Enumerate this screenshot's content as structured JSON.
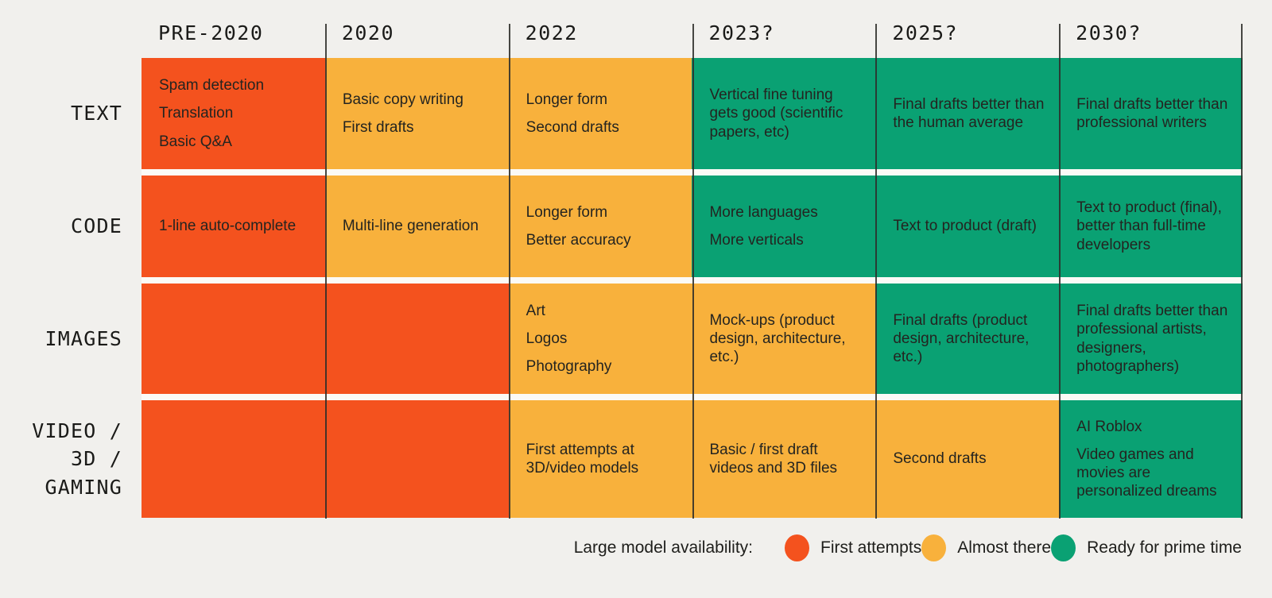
{
  "chart_data": {
    "type": "table",
    "title": "Large model availability",
    "columns": [
      "PRE-2020",
      "2020",
      "2022",
      "2023?",
      "2025?",
      "2030?"
    ],
    "row_labels": [
      [
        "TEXT"
      ],
      [
        "CODE"
      ],
      [
        "IMAGES"
      ],
      [
        "VIDEO /",
        "3D /",
        "GAMING"
      ]
    ],
    "rows": [
      {
        "name": "TEXT",
        "cells": [
          {
            "status": "first_attempts",
            "items": [
              "Spam detection",
              "Translation",
              "Basic Q&A"
            ]
          },
          {
            "status": "almost_there",
            "items": [
              "Basic copy writing",
              "First drafts"
            ]
          },
          {
            "status": "almost_there",
            "items": [
              "Longer form",
              "Second drafts"
            ]
          },
          {
            "status": "ready",
            "items": [
              "Vertical fine tuning gets good (scientific papers, etc)"
            ]
          },
          {
            "status": "ready",
            "items": [
              "Final drafts better than the human average"
            ]
          },
          {
            "status": "ready",
            "items": [
              "Final drafts better than professional writers"
            ]
          }
        ]
      },
      {
        "name": "CODE",
        "cells": [
          {
            "status": "first_attempts",
            "items": [
              "1-line auto-complete"
            ]
          },
          {
            "status": "almost_there",
            "items": [
              "Multi-line generation"
            ]
          },
          {
            "status": "almost_there",
            "items": [
              "Longer form",
              "Better accuracy"
            ]
          },
          {
            "status": "ready",
            "items": [
              "More languages",
              "More verticals"
            ]
          },
          {
            "status": "ready",
            "items": [
              "Text to product (draft)"
            ]
          },
          {
            "status": "ready",
            "items": [
              "Text to product (final), better than full-time developers"
            ]
          }
        ]
      },
      {
        "name": "IMAGES",
        "cells": [
          {
            "status": "first_attempts",
            "items": []
          },
          {
            "status": "first_attempts",
            "items": []
          },
          {
            "status": "almost_there",
            "items": [
              "Art",
              "Logos",
              "Photography"
            ]
          },
          {
            "status": "almost_there",
            "items": [
              "Mock-ups (product design, architecture, etc.)"
            ]
          },
          {
            "status": "ready",
            "items": [
              "Final drafts (product design, architecture, etc.)"
            ]
          },
          {
            "status": "ready",
            "items": [
              "Final drafts better than professional artists, designers, photographers)"
            ]
          }
        ]
      },
      {
        "name": "VIDEO / 3D / GAMING",
        "cells": [
          {
            "status": "first_attempts",
            "items": []
          },
          {
            "status": "first_attempts",
            "items": []
          },
          {
            "status": "almost_there",
            "items": [
              "First attempts at 3D/video models"
            ]
          },
          {
            "status": "almost_there",
            "items": [
              "Basic / first draft videos and 3D files"
            ]
          },
          {
            "status": "almost_there",
            "items": [
              "Second drafts"
            ]
          },
          {
            "status": "ready",
            "items": [
              "AI Roblox",
              "Video games and movies are personalized dreams"
            ]
          }
        ]
      }
    ],
    "legend": {
      "title": "Large model availability:",
      "items": [
        {
          "status": "first_attempts",
          "label": "First attempts"
        },
        {
          "status": "almost_there",
          "label": "Almost there"
        },
        {
          "status": "ready",
          "label": "Ready for prime time"
        }
      ]
    },
    "status_colors": {
      "first_attempts": "#F4521E",
      "almost_there": "#F8B13C",
      "ready": "#0AA173"
    }
  },
  "colors": {
    "background": "#F1F0ED",
    "row_gap": "#FBFAF6",
    "grid_line": "#2E2D2A",
    "cell_text": "#242420",
    "heading_text": "#1A1A18"
  }
}
